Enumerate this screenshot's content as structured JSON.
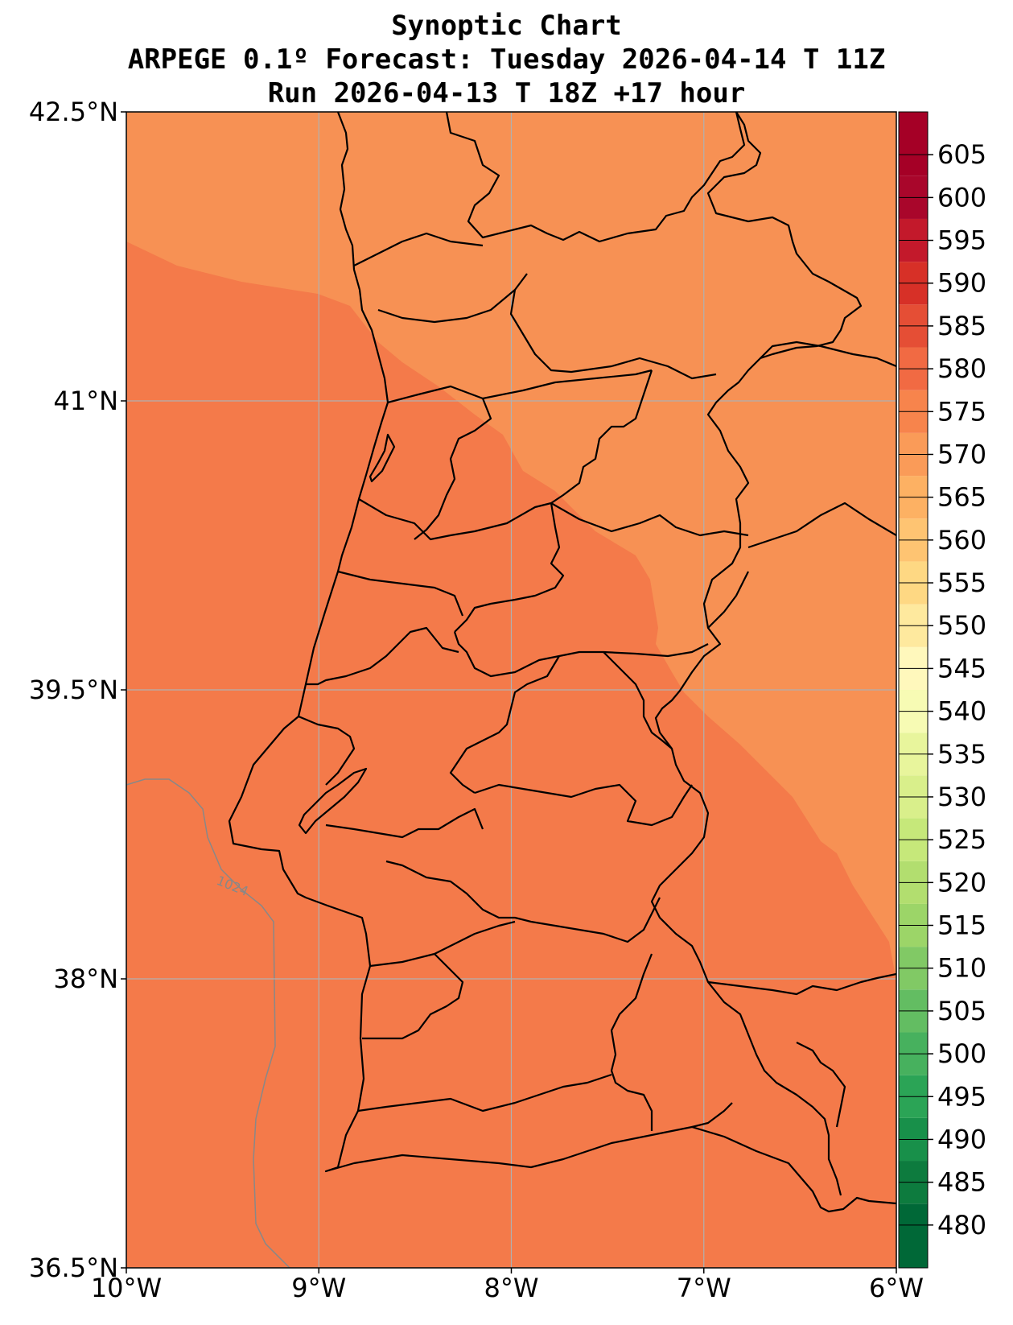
{
  "title": {
    "line1": "Synoptic Chart",
    "line2": "ARPEGE 0.1º Forecast: Tuesday 2026-04-14 T 11Z",
    "line3": "Run 2026-04-13 T 18Z +17 hour"
  },
  "map": {
    "lon_range": [
      -10,
      -6
    ],
    "lat_range": [
      36.5,
      42.5
    ],
    "x_ticks": [
      {
        "value": -10,
        "label": "10°W"
      },
      {
        "value": -9,
        "label": "9°W"
      },
      {
        "value": -8,
        "label": "8°W"
      },
      {
        "value": -7,
        "label": "7°W"
      },
      {
        "value": -6,
        "label": "6°W"
      }
    ],
    "y_ticks": [
      {
        "value": 42.5,
        "label": "42.5°N"
      },
      {
        "value": 41,
        "label": "41°N"
      },
      {
        "value": 39.5,
        "label": "39.5°N"
      },
      {
        "value": 38,
        "label": "38°N"
      },
      {
        "value": 36.5,
        "label": "36.5°N"
      }
    ],
    "grid": true,
    "fill_colors": {
      "band_570_575": "#f79154",
      "band_575_580": "#f47a4a"
    },
    "isobar_label": "1024",
    "isobar_color": "#888888"
  },
  "colorbar": {
    "levels": [
      480,
      485,
      490,
      495,
      500,
      505,
      510,
      515,
      520,
      525,
      530,
      535,
      540,
      545,
      550,
      555,
      560,
      565,
      570,
      575,
      580,
      585,
      590,
      595,
      600,
      605
    ],
    "colors": [
      "#006837",
      "#0d7b3e",
      "#18904a",
      "#2ba456",
      "#47b15e",
      "#63bd62",
      "#81c965",
      "#9cd568",
      "#b2de6f",
      "#c6e87a",
      "#d9ef8b",
      "#e8f59c",
      "#f7fbb4",
      "#fff8bc",
      "#fee99e",
      "#fed883",
      "#fec472",
      "#fdb163",
      "#fa9b58",
      "#f7844c",
      "#f16a43",
      "#e54e35",
      "#d73027",
      "#c3192b",
      "#a9062b",
      "#a50026"
    ],
    "min": 475,
    "max": 610
  }
}
